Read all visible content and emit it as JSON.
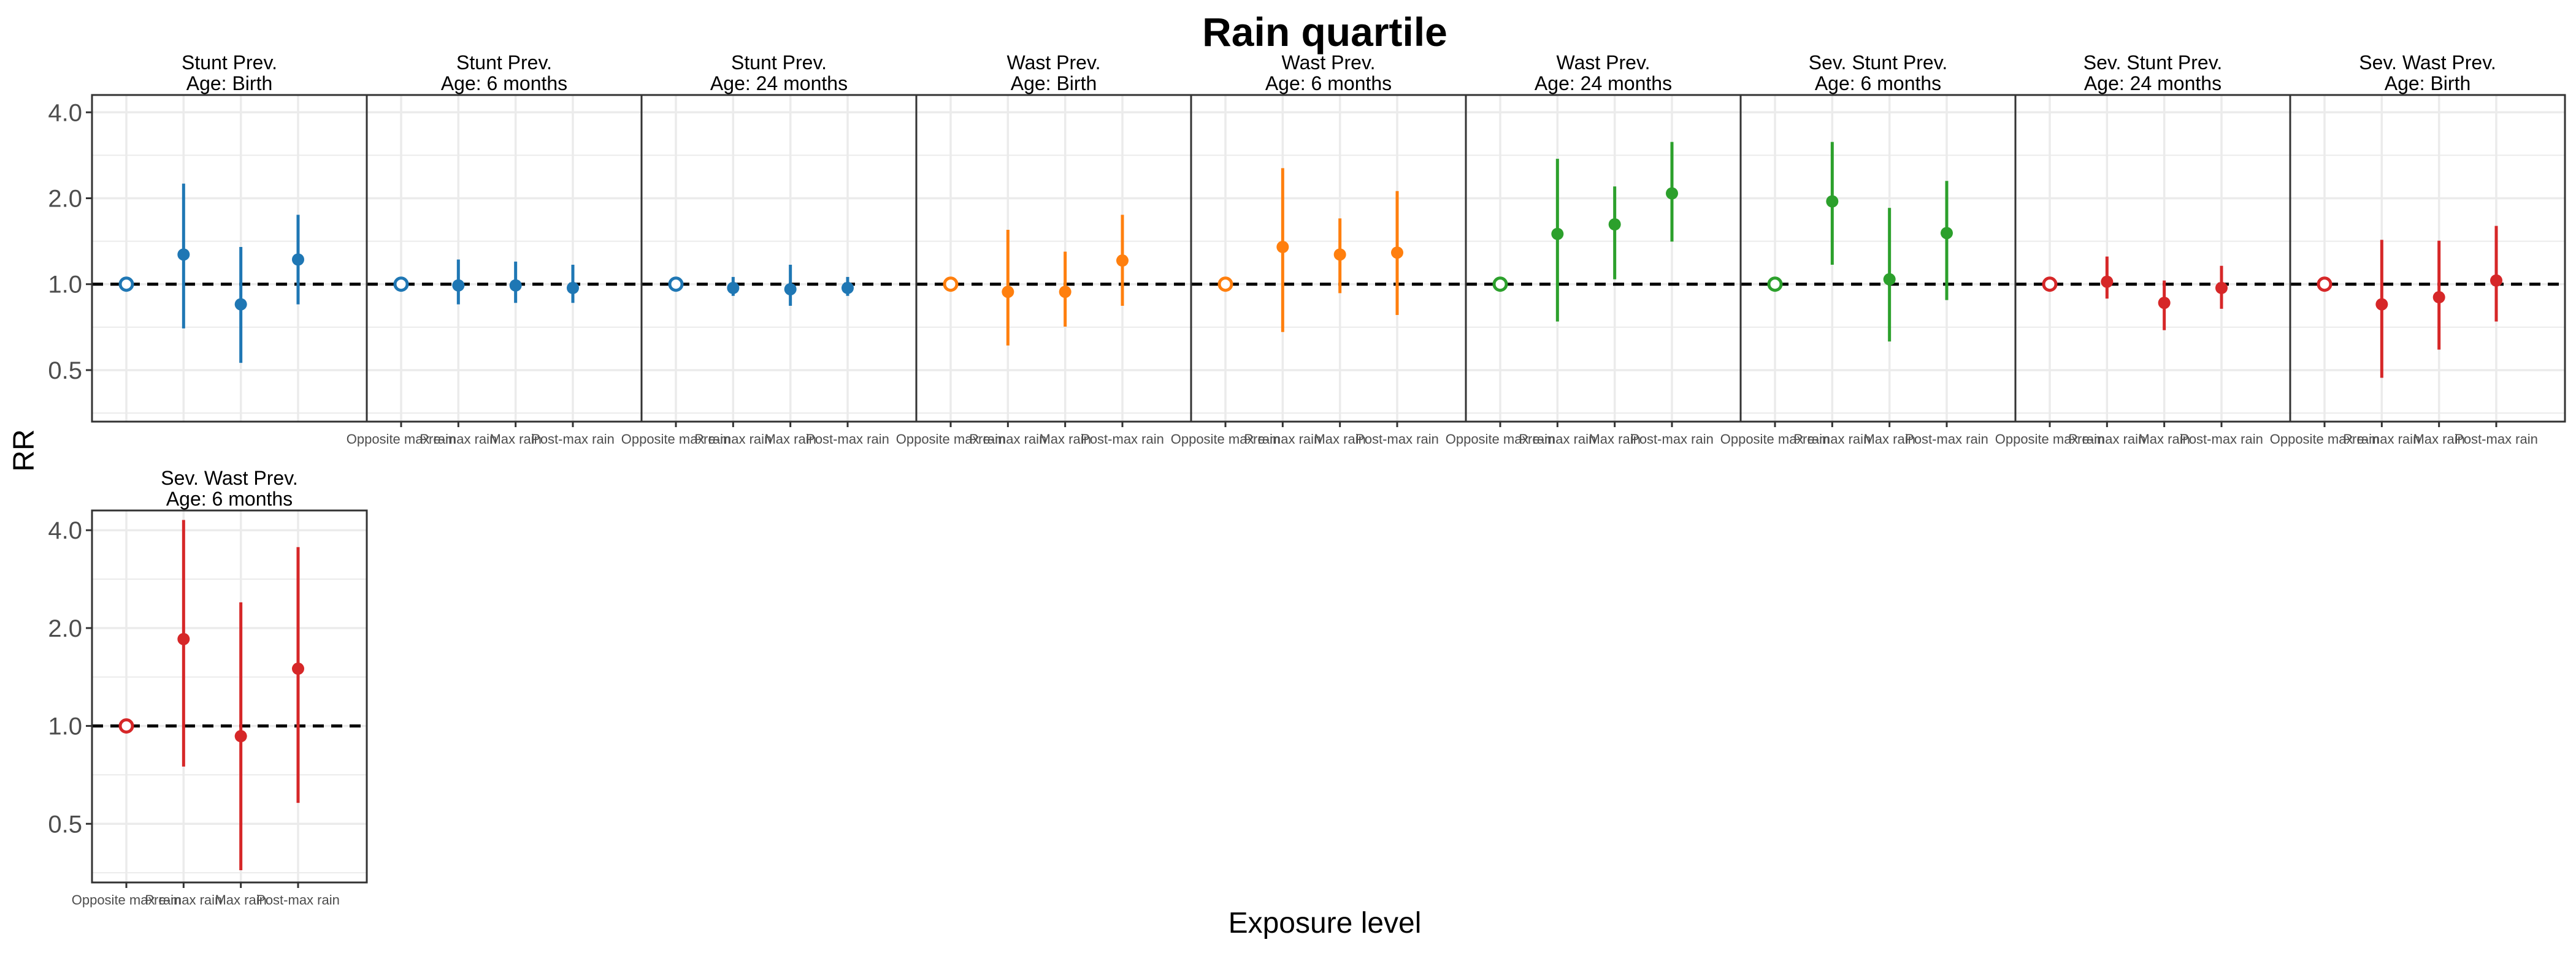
{
  "chart_data": {
    "type": "scatter",
    "title": "Rain quartile",
    "xlabel": "Exposure level",
    "ylabel": "RR",
    "y_scale": "log",
    "ylim": [
      0.33,
      4.6
    ],
    "y_ticks": [
      "0.5",
      "1.0",
      "2.0",
      "4.0"
    ],
    "y_tick_values": [
      0.5,
      1.0,
      2.0,
      4.0
    ],
    "reference_line": 1.0,
    "categories": [
      "Opposite max rain",
      "Pre-max rain",
      "Max rain",
      "Post-max rain"
    ],
    "colors": {
      "stunt": "#1f77b4",
      "wast": "#ff7f0e",
      "wast24": "#2ca02c",
      "severe": "#d62728",
      "frame": "#333333",
      "grid": "#ebebeb"
    },
    "facets": [
      {
        "label_line1": "Stunt Prev.",
        "label_line2": "Age: Birth",
        "color": "#1f77b4",
        "rr": [
          1.0,
          1.27,
          0.85,
          1.22
        ],
        "lower": [
          1.0,
          0.7,
          0.53,
          0.85
        ],
        "upper": [
          1.0,
          2.25,
          1.35,
          1.75
        ]
      },
      {
        "label_line1": "Stunt Prev.",
        "label_line2": "Age: 6 months",
        "color": "#1f77b4",
        "rr": [
          1.0,
          0.99,
          0.99,
          0.97
        ],
        "lower": [
          1.0,
          0.85,
          0.86,
          0.86
        ],
        "upper": [
          1.0,
          1.22,
          1.2,
          1.17
        ]
      },
      {
        "label_line1": "Stunt Prev.",
        "label_line2": "Age: 24 months",
        "color": "#1f77b4",
        "rr": [
          1.0,
          0.97,
          0.96,
          0.97
        ],
        "lower": [
          1.0,
          0.91,
          0.84,
          0.91
        ],
        "upper": [
          1.0,
          1.06,
          1.17,
          1.06
        ]
      },
      {
        "label_line1": "Wast Prev.",
        "label_line2": "Age: Birth",
        "color": "#ff7f0e",
        "rr": [
          1.0,
          0.94,
          0.94,
          1.21
        ],
        "lower": [
          1.0,
          0.61,
          0.71,
          0.84
        ],
        "upper": [
          1.0,
          1.55,
          1.3,
          1.75
        ]
      },
      {
        "label_line1": "Wast Prev.",
        "label_line2": "Age: 6 months",
        "color": "#ff7f0e",
        "rr": [
          1.0,
          1.35,
          1.27,
          1.29
        ],
        "lower": [
          1.0,
          0.68,
          0.93,
          0.78
        ],
        "upper": [
          1.0,
          2.55,
          1.7,
          2.12
        ]
      },
      {
        "label_line1": "Wast Prev.",
        "label_line2": "Age: 24 months",
        "color": "#2ca02c",
        "rr": [
          1.0,
          1.5,
          1.62,
          2.08
        ],
        "lower": [
          1.0,
          0.74,
          1.04,
          1.41
        ],
        "upper": [
          1.0,
          2.75,
          2.2,
          3.15
        ]
      },
      {
        "label_line1": "Sev. Stunt Prev.",
        "label_line2": "Age: 6 months",
        "color": "#2ca02c",
        "rr": [
          1.0,
          1.95,
          1.04,
          1.51
        ],
        "lower": [
          1.0,
          1.17,
          0.63,
          0.88
        ],
        "upper": [
          1.0,
          3.15,
          1.85,
          2.3
        ]
      },
      {
        "label_line1": "Sev. Stunt Prev.",
        "label_line2": "Age: 24 months",
        "color": "#d62728",
        "rr": [
          1.0,
          1.02,
          0.86,
          0.97
        ],
        "lower": [
          1.0,
          0.89,
          0.69,
          0.82
        ],
        "upper": [
          1.0,
          1.25,
          1.03,
          1.16
        ]
      },
      {
        "label_line1": "Sev. Wast Prev.",
        "label_line2": "Age: Birth",
        "color": "#d62728",
        "rr": [
          1.0,
          0.85,
          0.9,
          1.03
        ],
        "lower": [
          1.0,
          0.47,
          0.59,
          0.74
        ],
        "upper": [
          1.0,
          1.43,
          1.42,
          1.6
        ]
      },
      {
        "label_line1": "Sev. Wast Prev.",
        "label_line2": "Age: 6 months",
        "color": "#d62728",
        "rr": [
          1.0,
          1.85,
          0.93,
          1.5
        ],
        "lower": [
          1.0,
          0.75,
          0.36,
          0.58
        ],
        "upper": [
          1.0,
          4.3,
          2.4,
          3.55
        ]
      }
    ]
  }
}
